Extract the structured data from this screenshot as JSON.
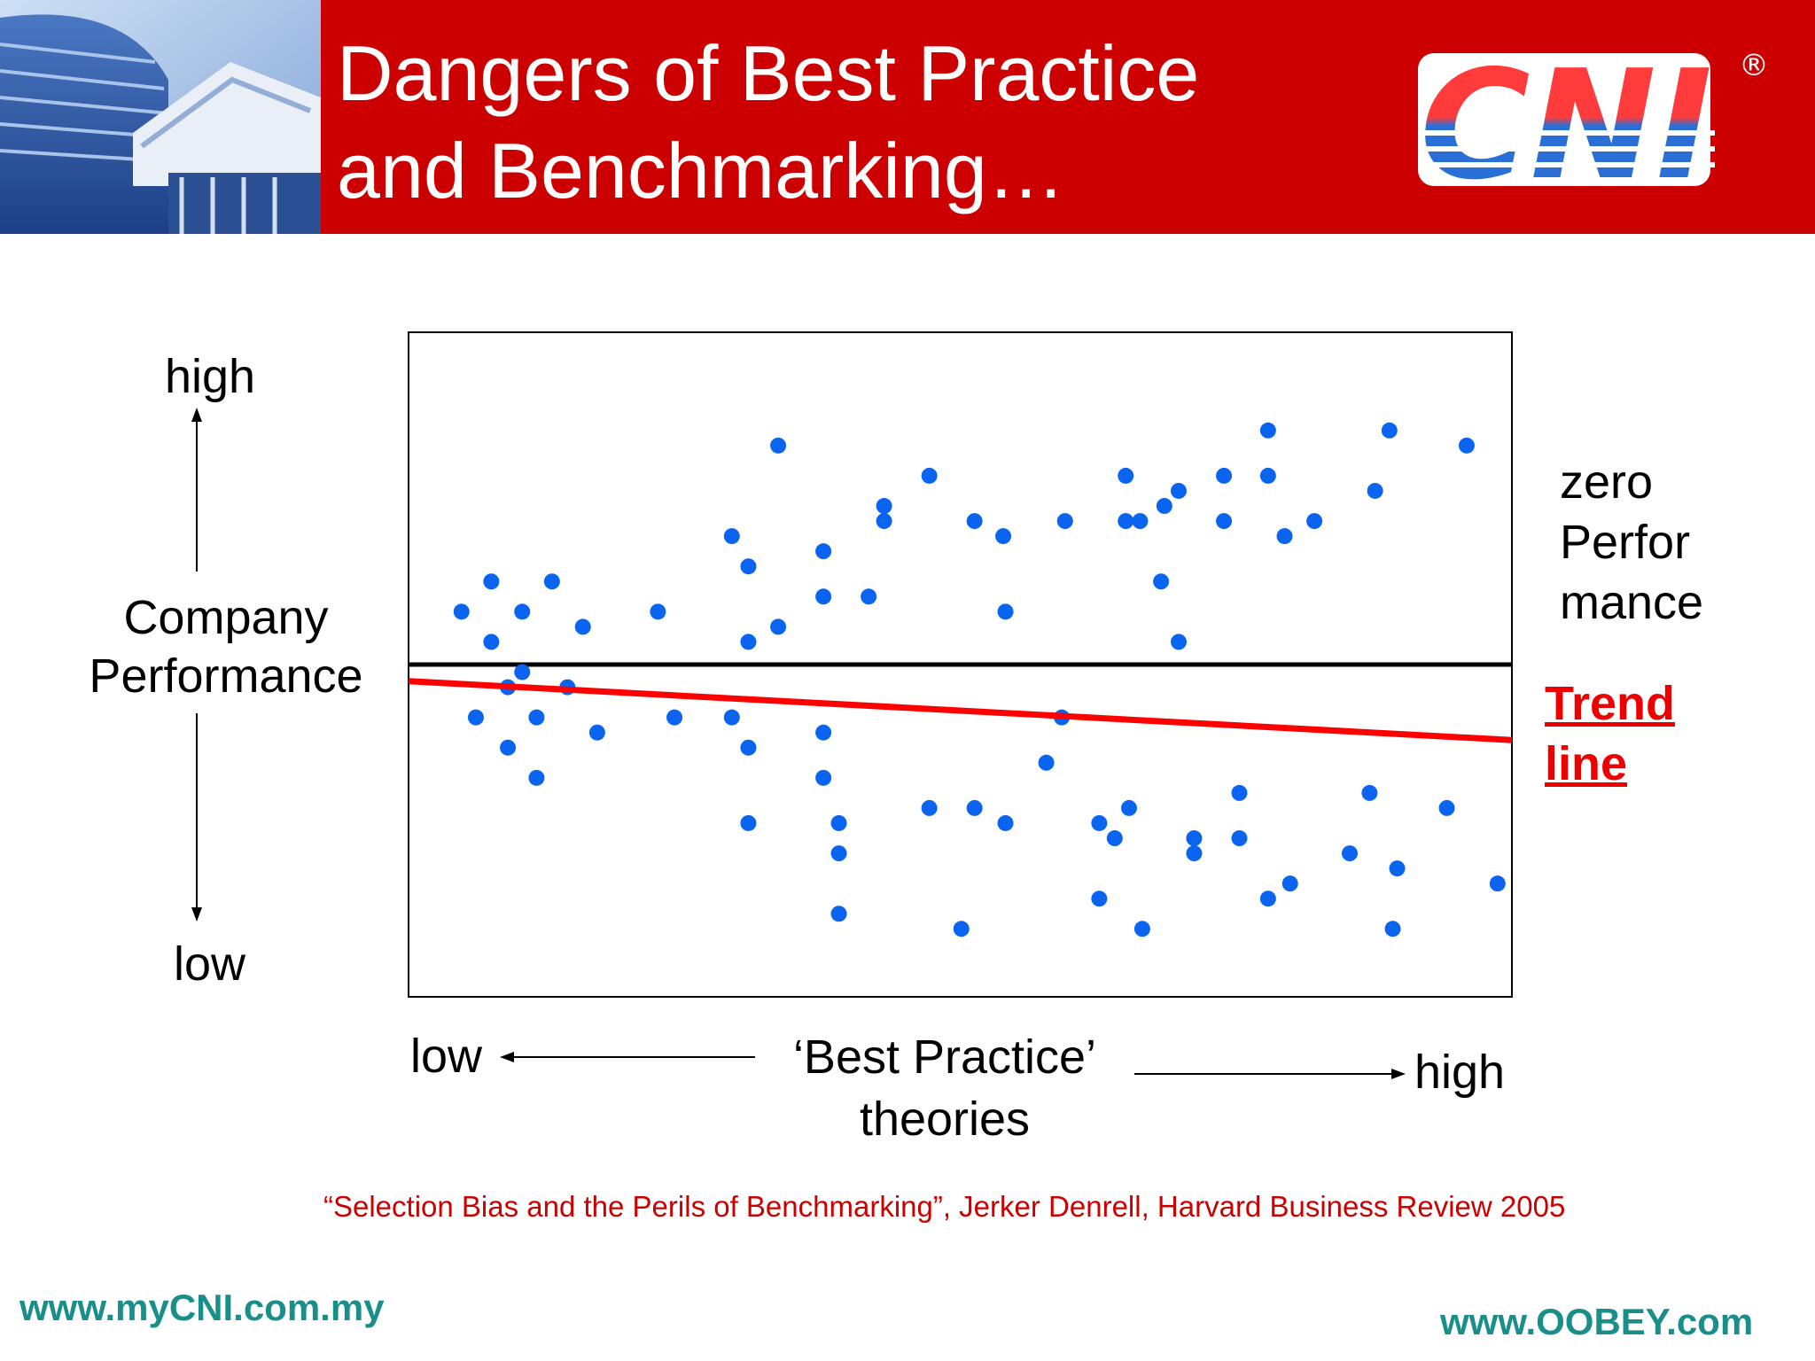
{
  "header": {
    "title_line1": "Dangers of Best Practice",
    "title_line2": "and Benchmarking…",
    "logo_text": "CNI",
    "registered_mark": "®",
    "background_color": "#cc0000"
  },
  "y_axis": {
    "high_label": "high",
    "low_label": "low",
    "title_line1": "Company",
    "title_line2": "Performance"
  },
  "x_axis": {
    "low_label": "low",
    "high_label": "high",
    "title_line1": "‘Best Practice’",
    "title_line2": "theories"
  },
  "legend": {
    "zero_line1": "zero",
    "zero_line2": "Perfor",
    "zero_line3": "mance",
    "trend_line1": "Trend",
    "trend_line2": "line"
  },
  "chart_data": {
    "type": "scatter",
    "xlim": [
      0,
      100
    ],
    "ylim": [
      -44,
      44
    ],
    "zero_line": 0,
    "trend_line": {
      "start": [
        0,
        -2.2
      ],
      "end": [
        100,
        -10
      ]
    },
    "point_color": "#0a64f0",
    "trend_color": "#ff0000",
    "points": [
      [
        4.8,
        7
      ],
      [
        7.5,
        11
      ],
      [
        7.5,
        3
      ],
      [
        10.3,
        7
      ],
      [
        13,
        11
      ],
      [
        15.8,
        5
      ],
      [
        9,
        -3
      ],
      [
        6.1,
        -7
      ],
      [
        9,
        -11
      ],
      [
        11.6,
        -7
      ],
      [
        11.6,
        -15
      ],
      [
        14.4,
        -3
      ],
      [
        17.1,
        -9
      ],
      [
        10.3,
        -1
      ],
      [
        22.6,
        7
      ],
      [
        29.3,
        17
      ],
      [
        30.8,
        13
      ],
      [
        30.8,
        3
      ],
      [
        33.5,
        29
      ],
      [
        33.5,
        5
      ],
      [
        37.6,
        15
      ],
      [
        37.6,
        9
      ],
      [
        41.7,
        9
      ],
      [
        43.1,
        21
      ],
      [
        43.1,
        19
      ],
      [
        47.2,
        25
      ],
      [
        51.3,
        19
      ],
      [
        54.1,
        7
      ],
      [
        53.9,
        17
      ],
      [
        59.5,
        19
      ],
      [
        65,
        25
      ],
      [
        65,
        19
      ],
      [
        68.5,
        21
      ],
      [
        68.2,
        11
      ],
      [
        66.3,
        19
      ],
      [
        69.8,
        23
      ],
      [
        69.8,
        3
      ],
      [
        73.9,
        25
      ],
      [
        73.9,
        19
      ],
      [
        77.9,
        31
      ],
      [
        77.9,
        25
      ],
      [
        79.4,
        17
      ],
      [
        82.1,
        19
      ],
      [
        87.6,
        23
      ],
      [
        88.9,
        31
      ],
      [
        95.9,
        29
      ],
      [
        24.1,
        -7
      ],
      [
        29.3,
        -7
      ],
      [
        30.8,
        -11
      ],
      [
        30.8,
        -21
      ],
      [
        37.6,
        -9
      ],
      [
        37.6,
        -15
      ],
      [
        39,
        -21
      ],
      [
        39,
        -25
      ],
      [
        39,
        -33
      ],
      [
        47.2,
        -19
      ],
      [
        50.1,
        -35
      ],
      [
        51.3,
        -19
      ],
      [
        54.1,
        -21
      ],
      [
        57.8,
        -13
      ],
      [
        59.2,
        -7
      ],
      [
        62.6,
        -21
      ],
      [
        62.6,
        -31
      ],
      [
        64,
        -23
      ],
      [
        65.3,
        -19
      ],
      [
        66.5,
        -35
      ],
      [
        71.2,
        -23
      ],
      [
        71.2,
        -25
      ],
      [
        75.3,
        -17
      ],
      [
        75.3,
        -23
      ],
      [
        77.9,
        -31
      ],
      [
        79.9,
        -29
      ],
      [
        85.3,
        -25
      ],
      [
        87.1,
        -17
      ],
      [
        89.6,
        -27
      ],
      [
        89.2,
        -35
      ],
      [
        94.1,
        -19
      ],
      [
        98.7,
        -29
      ]
    ]
  },
  "citation": "“Selection Bias and the Perils of Benchmarking”, Jerker Denrell, Harvard Business Review 2005",
  "footer": {
    "left_url": "www.myCNI.com.my",
    "right_url": "www.OOBEY.com",
    "url_color": "#1a8f8a"
  }
}
